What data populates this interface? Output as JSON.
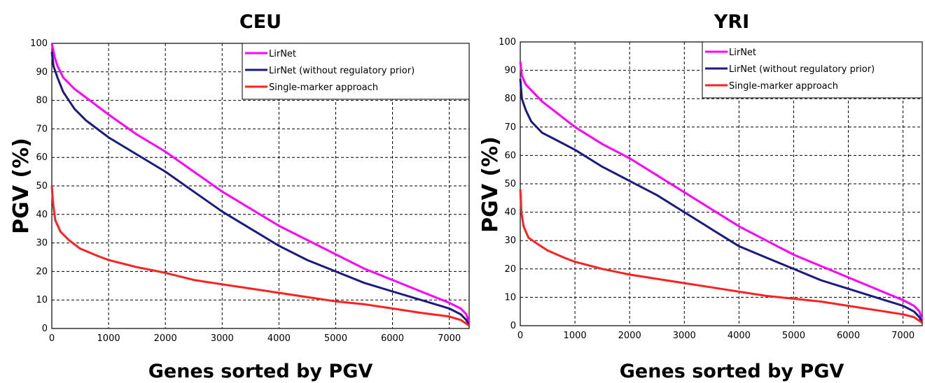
{
  "chart_data": [
    {
      "type": "line",
      "title": "CEU",
      "xlabel": "Genes sorted by PGV",
      "ylabel": "PGV (%)",
      "xlim": [
        0,
        7350
      ],
      "ylim": [
        0,
        100
      ],
      "xticks": [
        0,
        1000,
        2000,
        3000,
        4000,
        5000,
        6000,
        7000
      ],
      "yticks": [
        0,
        10,
        20,
        30,
        40,
        50,
        60,
        70,
        80,
        90,
        100
      ],
      "grid": true,
      "legend_position": "top-right",
      "series": [
        {
          "name": "LirNet",
          "color": "#ff00ff",
          "x": [
            0,
            50,
            100,
            200,
            400,
            600,
            1000,
            1500,
            2000,
            2500,
            3000,
            3500,
            4000,
            4500,
            5000,
            5500,
            6000,
            6500,
            7000,
            7200,
            7300,
            7350
          ],
          "y": [
            100,
            95,
            92,
            88,
            84,
            81,
            75,
            68,
            62,
            55,
            48,
            42,
            36,
            31,
            26,
            21,
            17,
            13,
            9,
            7,
            5,
            2
          ]
        },
        {
          "name": "LirNet (without regulatory prior)",
          "color": "#1a1a80",
          "x": [
            0,
            30,
            100,
            200,
            400,
            600,
            1000,
            1500,
            2000,
            2500,
            3000,
            3500,
            4000,
            4500,
            5000,
            5500,
            6000,
            6500,
            7000,
            7200,
            7300,
            7350
          ],
          "y": [
            97,
            92,
            88,
            83,
            77,
            73,
            67,
            61,
            55,
            48,
            41,
            35,
            29,
            24,
            20,
            16,
            13,
            10,
            7,
            5,
            3,
            1
          ]
        },
        {
          "name": "Single-marker approach",
          "color": "#ff2020",
          "x": [
            0,
            20,
            60,
            150,
            300,
            500,
            800,
            1000,
            1500,
            2000,
            2500,
            3000,
            3500,
            4000,
            4500,
            5000,
            5500,
            6000,
            6500,
            7000,
            7200,
            7350
          ],
          "y": [
            50,
            44,
            38,
            34,
            31,
            28,
            25.5,
            24,
            21.5,
            19.5,
            17,
            15.5,
            14,
            12.5,
            11,
            9.5,
            8.5,
            7,
            5.5,
            4.2,
            3,
            1
          ]
        }
      ]
    },
    {
      "type": "line",
      "title": "YRI",
      "xlabel": "Genes sorted by PGV",
      "ylabel": "PGV (%)",
      "xlim": [
        0,
        7350
      ],
      "ylim": [
        0,
        100
      ],
      "xticks": [
        0,
        1000,
        2000,
        3000,
        4000,
        5000,
        6000,
        7000
      ],
      "yticks": [
        0,
        10,
        20,
        30,
        40,
        50,
        60,
        70,
        80,
        90,
        100
      ],
      "grid": true,
      "legend_position": "top-right",
      "series": [
        {
          "name": "LirNet",
          "color": "#ff00ff",
          "x": [
            0,
            30,
            100,
            200,
            400,
            600,
            1000,
            1500,
            2000,
            2500,
            3000,
            3500,
            4000,
            4500,
            5000,
            5500,
            6000,
            6500,
            7000,
            7200,
            7300,
            7350
          ],
          "y": [
            93,
            88,
            85,
            83,
            79,
            76,
            70,
            64,
            59,
            53,
            47,
            41,
            35,
            30,
            25,
            21,
            17,
            13,
            9,
            7,
            5,
            2
          ]
        },
        {
          "name": "LirNet (without regulatory prior)",
          "color": "#1a1a80",
          "x": [
            0,
            30,
            100,
            200,
            400,
            600,
            1000,
            1500,
            2000,
            2500,
            3000,
            3500,
            4000,
            4500,
            5000,
            5500,
            6000,
            6500,
            7000,
            7200,
            7300,
            7350
          ],
          "y": [
            87,
            80,
            76,
            72,
            68,
            66,
            62,
            56,
            51,
            46,
            40,
            34,
            28,
            24,
            20,
            16,
            13,
            10,
            7,
            5,
            3,
            1
          ]
        },
        {
          "name": "Single-marker approach",
          "color": "#ff2020",
          "x": [
            0,
            20,
            60,
            150,
            300,
            500,
            800,
            1000,
            1500,
            2000,
            2500,
            3000,
            3500,
            4000,
            4500,
            5000,
            5500,
            6000,
            6500,
            7000,
            7200,
            7350
          ],
          "y": [
            48,
            40,
            35,
            31,
            29,
            26.5,
            24,
            22.5,
            20,
            18,
            16.5,
            15,
            13.5,
            12,
            10.5,
            9.5,
            8.5,
            7,
            5.5,
            4,
            3,
            1
          ]
        }
      ]
    }
  ]
}
